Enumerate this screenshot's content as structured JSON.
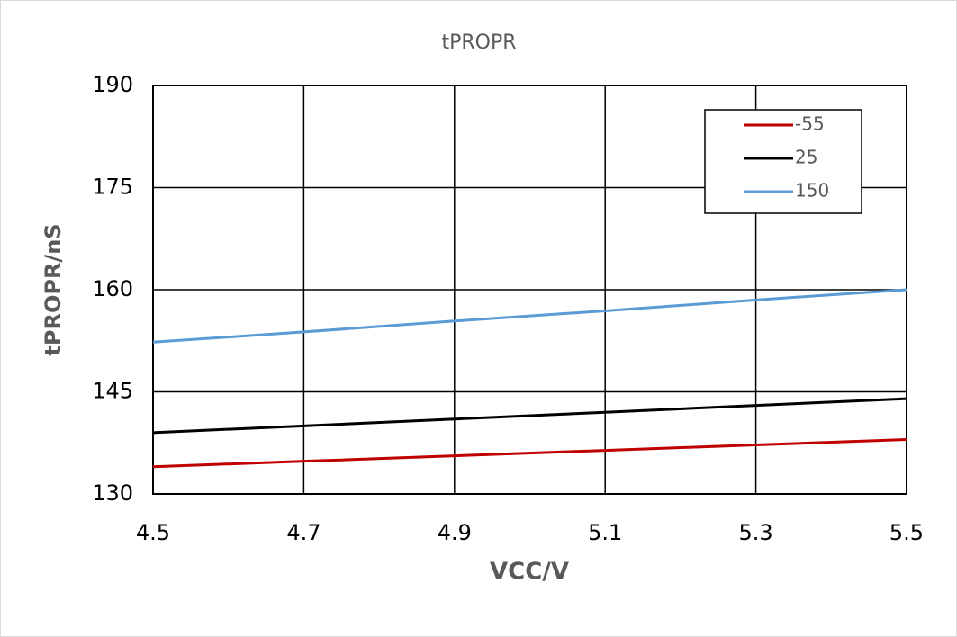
{
  "chart_data": {
    "type": "line",
    "title": "tPROPR",
    "x_label": "VCC/V",
    "y_label": "tPROPR/nS",
    "x": [
      4.5,
      4.7,
      4.9,
      5.1,
      5.3,
      5.5
    ],
    "series": [
      {
        "name": "-55",
        "color": "#c00000",
        "values": [
          134,
          134.8,
          135.6,
          136.4,
          137.2,
          138
        ]
      },
      {
        "name": "25",
        "color": "#000000",
        "values": [
          139,
          140,
          141,
          142,
          143,
          144
        ]
      },
      {
        "name": "150",
        "color": "#5b9bd5",
        "values": [
          152.3,
          153.8,
          155.4,
          156.9,
          158.5,
          160
        ]
      }
    ],
    "xlim": [
      4.5,
      5.5
    ],
    "xticks": [
      4.5,
      4.7,
      4.9,
      5.1,
      5.3,
      5.5
    ],
    "ylim": [
      130,
      190
    ],
    "yticks": [
      130,
      145,
      160,
      175,
      190
    ],
    "grid": true,
    "legend": "upper-right"
  }
}
